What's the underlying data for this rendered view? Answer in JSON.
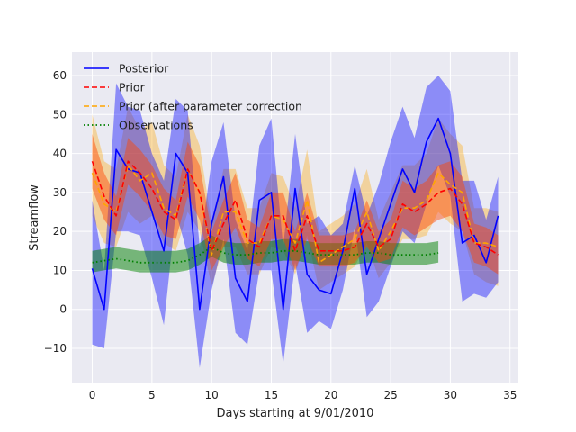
{
  "chart_data": {
    "type": "line",
    "title": "",
    "xlabel": "Days starting at 9/01/2010",
    "ylabel": "Streamflow",
    "xlim": [
      -1.7,
      35.7
    ],
    "ylim": [
      -19,
      66
    ],
    "xticks": [
      0,
      5,
      10,
      15,
      20,
      25,
      30,
      35
    ],
    "yticks": [
      -10,
      0,
      10,
      20,
      30,
      40,
      50,
      60
    ],
    "grid": true,
    "legend_position": "top-left",
    "colors": {
      "background": "#EAEAF2",
      "grid": "#FFFFFF",
      "posterior": "#0000FF",
      "posterior_band": "#0000FF",
      "prior": "#FF0000",
      "prior_band": "#FF4500",
      "prior_corrected": "#FFA500",
      "prior_corrected_band": "#FFA500",
      "observations": "#008000",
      "observations_band": "#008000"
    },
    "series": [
      {
        "name": "Posterior",
        "style": "solid",
        "x": [
          0,
          1,
          2,
          3,
          4,
          5,
          6,
          7,
          8,
          9,
          10,
          11,
          12,
          13,
          14,
          15,
          16,
          17,
          18,
          19,
          20,
          21,
          22,
          23,
          24,
          25,
          26,
          27,
          28,
          29,
          30,
          31,
          32,
          33,
          34
        ],
        "values": [
          10.5,
          0,
          41,
          36,
          35,
          25,
          15,
          40,
          35,
          0,
          22,
          34,
          8,
          2,
          28,
          30,
          0,
          31,
          9,
          5,
          4,
          15,
          31,
          9,
          18,
          27,
          36,
          30,
          43,
          49,
          40,
          17,
          19,
          12,
          24
        ],
        "band_lower": [
          -9,
          -10,
          20,
          20,
          19,
          8,
          -4,
          25,
          14,
          -15,
          5,
          18,
          -6,
          -9,
          10,
          10,
          -14,
          12,
          -6,
          -3,
          -5,
          5,
          21,
          -2,
          2,
          11,
          20,
          17,
          27,
          37,
          29,
          2,
          4,
          3,
          7
        ],
        "band_upper": [
          28,
          10,
          58,
          52,
          51,
          40,
          33,
          54,
          51,
          16,
          38,
          48,
          23,
          15,
          42,
          49,
          16,
          45,
          22,
          24,
          19,
          22,
          37,
          24,
          32,
          43,
          52,
          44,
          57,
          60,
          56,
          33,
          33,
          23,
          34
        ]
      },
      {
        "name": "Prior",
        "style": "dashed",
        "x": [
          0,
          1,
          2,
          3,
          4,
          5,
          6,
          7,
          8,
          9,
          10,
          11,
          12,
          13,
          14,
          15,
          16,
          17,
          18,
          19,
          20,
          21,
          22,
          23,
          24,
          25,
          26,
          27,
          28,
          29,
          30,
          31,
          32,
          33,
          34
        ],
        "values": [
          38,
          29,
          24,
          38,
          35,
          31,
          25,
          23,
          36,
          30,
          15,
          22,
          28,
          18,
          16,
          24,
          24,
          15,
          24,
          15,
          15,
          15,
          16,
          22,
          16,
          18,
          27,
          25,
          27,
          30,
          31,
          27,
          17,
          16,
          14
        ],
        "band_lower": [
          31,
          23,
          19,
          32,
          29,
          25,
          19,
          18,
          29,
          23,
          10,
          16,
          21,
          13,
          11,
          18,
          18,
          10,
          18,
          11,
          11,
          11,
          12,
          16,
          12,
          13,
          21,
          19,
          21,
          23,
          24,
          20,
          12,
          11,
          9
        ],
        "band_upper": [
          45,
          35,
          29,
          44,
          41,
          37,
          31,
          28,
          43,
          37,
          20,
          28,
          35,
          23,
          21,
          30,
          30,
          20,
          30,
          19,
          19,
          19,
          20,
          28,
          20,
          23,
          33,
          31,
          33,
          37,
          38,
          34,
          22,
          21,
          19
        ]
      },
      {
        "name": "Prior (after parameter correction",
        "style": "dashed",
        "x": [
          0,
          1,
          2,
          3,
          4,
          5,
          6,
          7,
          8,
          9,
          10,
          11,
          12,
          13,
          14,
          15,
          16,
          17,
          18,
          19,
          20,
          21,
          22,
          23,
          24,
          25,
          26,
          27,
          28,
          29,
          30,
          31,
          32,
          33,
          34
        ],
        "values": [
          35,
          27,
          25,
          37,
          33,
          35,
          26,
          24,
          36,
          30,
          14,
          25,
          25,
          17,
          17,
          24,
          23,
          17,
          28,
          12,
          14,
          16,
          18,
          25,
          15,
          20,
          26,
          26,
          28,
          35,
          32,
          30,
          17,
          17,
          16
        ],
        "band_lower": [
          24,
          17,
          16,
          25,
          22,
          24,
          17,
          15,
          25,
          20,
          6,
          16,
          16,
          9,
          9,
          16,
          15,
          9,
          19,
          5,
          7,
          9,
          11,
          17,
          8,
          12,
          18,
          18,
          19,
          25,
          22,
          20,
          9,
          7,
          6
        ],
        "band_upper": [
          50,
          38,
          36,
          52,
          46,
          48,
          37,
          34,
          50,
          42,
          22,
          36,
          36,
          26,
          26,
          35,
          34,
          26,
          41,
          20,
          22,
          24,
          27,
          36,
          23,
          30,
          37,
          37,
          40,
          49,
          45,
          42,
          26,
          26,
          25
        ]
      },
      {
        "name": "Observations",
        "style": "dotted",
        "x": [
          0,
          1,
          2,
          3,
          4,
          5,
          6,
          7,
          8,
          9,
          10,
          11,
          12,
          13,
          14,
          15,
          16,
          17,
          18,
          19,
          20,
          21,
          22,
          23,
          24,
          25,
          26,
          27,
          28,
          29
        ],
        "values": [
          12,
          12.5,
          13,
          12.5,
          12,
          12,
          12,
          12,
          12.5,
          14,
          16,
          14.5,
          14,
          14,
          14.5,
          14.5,
          15,
          15,
          14.5,
          14,
          14,
          14,
          14,
          14.5,
          14.5,
          14,
          14,
          14,
          14,
          14.5
        ],
        "band_lower": [
          9.5,
          10,
          10.5,
          10,
          9.5,
          9.5,
          9.5,
          9.5,
          10,
          11.5,
          13.5,
          12,
          11.5,
          11.5,
          12,
          12,
          12.5,
          12.5,
          12,
          11.5,
          11.5,
          11.5,
          11.5,
          12,
          12,
          11.5,
          11.5,
          11.5,
          11.5,
          12
        ],
        "band_upper": [
          15,
          15.5,
          16,
          15.5,
          15,
          15,
          15,
          15,
          15.5,
          17,
          19,
          17.5,
          17,
          17,
          17.5,
          17.5,
          18,
          18,
          17.5,
          17,
          17,
          17,
          17,
          17.5,
          17.5,
          17,
          17,
          17,
          17,
          17.5
        ]
      }
    ]
  }
}
